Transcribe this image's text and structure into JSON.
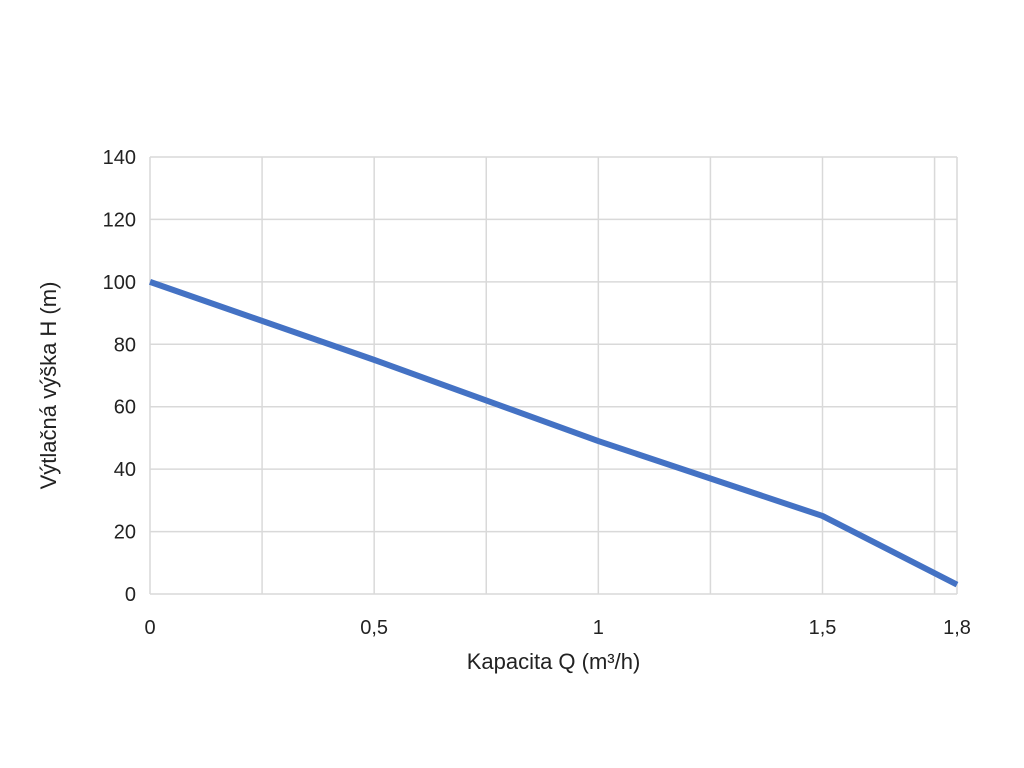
{
  "chart_data": {
    "type": "line",
    "title": "",
    "xlabel": "Kapacita Q (m³/h)",
    "ylabel": "Výtlačná výška H (m)",
    "xlim": [
      0,
      1.8
    ],
    "ylim": [
      0,
      140
    ],
    "x_ticks": [
      0,
      0.5,
      1,
      1.5,
      1.8
    ],
    "x_tick_labels": [
      "0",
      "0,5",
      "1",
      "1,5",
      "1,8"
    ],
    "y_ticks": [
      0,
      20,
      40,
      60,
      80,
      100,
      120,
      140
    ],
    "y_tick_labels": [
      "0",
      "20",
      "40",
      "60",
      "80",
      "100",
      "120",
      "140"
    ],
    "x_grid_lines": [
      0,
      0.25,
      0.5,
      0.75,
      1,
      1.25,
      1.5,
      1.75,
      1.8
    ],
    "grid": true,
    "legend": "none",
    "series": [
      {
        "color": "#4472c4",
        "x": [
          0,
          0.5,
          1,
          1.5,
          1.8
        ],
        "y": [
          100,
          75,
          49,
          25,
          3
        ]
      }
    ]
  }
}
